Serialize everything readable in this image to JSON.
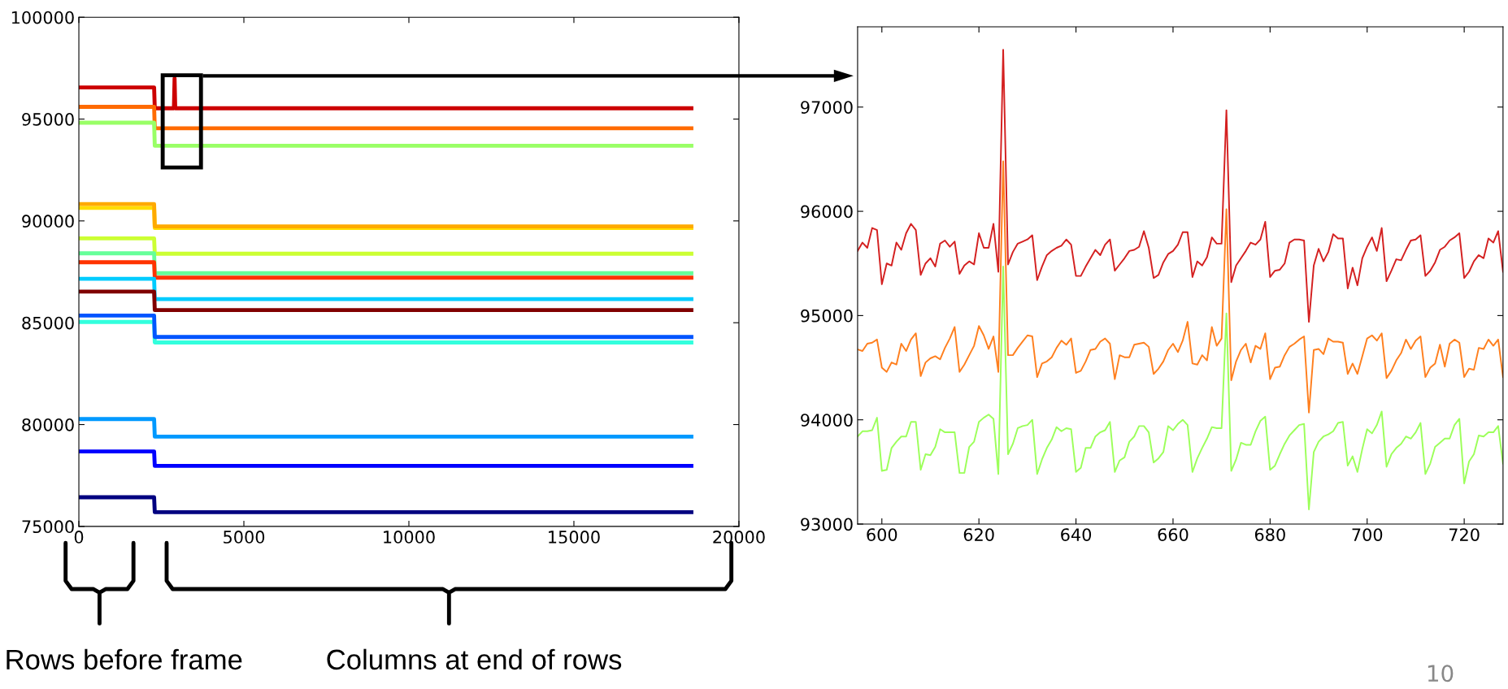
{
  "chart_data": [
    {
      "type": "line",
      "xlim": [
        0,
        20000
      ],
      "ylim": [
        75000,
        100000
      ],
      "xticks": [
        0,
        5000,
        10000,
        15000,
        20000
      ],
      "yticks": [
        75000,
        80000,
        85000,
        90000,
        95000,
        100000
      ],
      "annotations": [
        "Rows before frame",
        "Columns at end of rows"
      ],
      "series": [
        {
          "color": "#cc0000",
          "x": [
            0,
            2280,
            2300,
            2880,
            2900,
            2920,
            18560
          ],
          "values": [
            96550,
            96550,
            95530,
            95530,
            97000,
            95530,
            95530
          ]
        },
        {
          "color": "#ff6a00",
          "x": [
            0,
            2280,
            2300,
            18560
          ],
          "values": [
            95600,
            95600,
            94550,
            94550
          ]
        },
        {
          "color": "#99ff66",
          "x": [
            0,
            2280,
            2300,
            18560
          ],
          "values": [
            94820,
            94820,
            93690,
            93690
          ]
        },
        {
          "color": "#ffdd00",
          "x": [
            0,
            2280,
            2300,
            18560
          ],
          "values": [
            90640,
            90640,
            89650,
            89650
          ]
        },
        {
          "color": "#ffaa00",
          "x": [
            0,
            2280,
            2300,
            18560
          ],
          "values": [
            90830,
            90830,
            89730,
            89730
          ]
        },
        {
          "color": "#ccff33",
          "x": [
            0,
            2280,
            2300,
            18560
          ],
          "values": [
            89140,
            89140,
            88390,
            88390
          ]
        },
        {
          "color": "#66ff99",
          "x": [
            0,
            2280,
            2300,
            18560
          ],
          "values": [
            88410,
            88410,
            87430,
            87430
          ]
        },
        {
          "color": "#ff3300",
          "x": [
            0,
            2280,
            2300,
            18560
          ],
          "values": [
            87970,
            87970,
            87210,
            87210
          ]
        },
        {
          "color": "#00ccff",
          "x": [
            0,
            2280,
            2300,
            18560
          ],
          "values": [
            87160,
            87160,
            86160,
            86160
          ]
        },
        {
          "color": "#800000",
          "x": [
            0,
            2280,
            2300,
            18560
          ],
          "values": [
            86530,
            86530,
            85620,
            85620
          ]
        },
        {
          "color": "#33ffdd",
          "x": [
            0,
            2280,
            2300,
            18560
          ],
          "values": [
            85040,
            85040,
            84030,
            84030
          ]
        },
        {
          "color": "#0055ff",
          "x": [
            0,
            2280,
            2300,
            18560
          ],
          "values": [
            85350,
            85350,
            84300,
            84300
          ]
        },
        {
          "color": "#0099ff",
          "x": [
            0,
            2280,
            2300,
            18560
          ],
          "values": [
            80270,
            80270,
            79410,
            79410
          ]
        },
        {
          "color": "#0000ff",
          "x": [
            0,
            2280,
            2300,
            18560
          ],
          "values": [
            78680,
            78680,
            77970,
            77970
          ]
        },
        {
          "color": "#000080",
          "x": [
            0,
            2280,
            2300,
            18560
          ],
          "values": [
            76430,
            76430,
            75700,
            75700
          ]
        }
      ]
    },
    {
      "type": "line",
      "xlim": [
        595,
        728
      ],
      "ylim": [
        93000,
        97770
      ],
      "xticks": [
        600,
        620,
        640,
        660,
        680,
        700,
        720
      ],
      "yticks": [
        93000,
        94000,
        95000,
        96000,
        97000
      ],
      "annotations": [
        "10"
      ],
      "x": [
        595,
        596,
        597,
        598,
        599,
        600,
        601,
        602,
        603,
        604,
        605,
        606,
        607,
        608,
        609,
        610,
        611,
        612,
        613,
        614,
        615,
        616,
        617,
        618,
        619,
        620,
        621,
        622,
        623,
        624,
        625,
        626,
        627,
        628,
        629,
        630,
        631,
        632,
        633,
        634,
        635,
        636,
        637,
        638,
        639,
        640,
        641,
        642,
        643,
        644,
        645,
        646,
        647,
        648,
        649,
        650,
        651,
        652,
        653,
        654,
        655,
        656,
        657,
        658,
        659,
        660,
        661,
        662,
        663,
        664,
        665,
        666,
        667,
        668,
        669,
        670,
        671,
        672,
        673,
        674,
        675,
        676,
        677,
        678,
        679,
        680,
        681,
        682,
        683,
        684,
        685,
        686,
        687,
        688,
        689,
        690,
        691,
        692,
        693,
        694,
        695,
        696,
        697,
        698,
        699,
        700,
        701,
        702,
        703,
        704,
        705,
        706,
        707,
        708,
        709,
        710,
        711,
        712,
        713,
        714,
        715,
        716,
        717,
        718,
        719,
        720,
        721,
        722,
        723,
        724,
        725,
        726,
        727,
        728
      ],
      "series": [
        {
          "color": "#d42020",
          "values": [
            95620,
            95700,
            95650,
            95840,
            95820,
            95300,
            95500,
            95480,
            95700,
            95630,
            95790,
            95880,
            95820,
            95390,
            95500,
            95550,
            95470,
            95690,
            95720,
            95660,
            95710,
            95400,
            95480,
            95520,
            95490,
            95790,
            95650,
            95650,
            95880,
            95420,
            97550,
            95490,
            95610,
            95690,
            95710,
            95730,
            95770,
            95340,
            95470,
            95580,
            95620,
            95650,
            95670,
            95730,
            95680,
            95380,
            95380,
            95470,
            95550,
            95630,
            95580,
            95680,
            95730,
            95430,
            95490,
            95550,
            95620,
            95630,
            95660,
            95810,
            95650,
            95360,
            95390,
            95510,
            95590,
            95620,
            95680,
            95800,
            95800,
            95370,
            95520,
            95480,
            95560,
            95750,
            95690,
            95690,
            96970,
            95320,
            95480,
            95550,
            95620,
            95700,
            95680,
            95730,
            95900,
            95370,
            95430,
            95440,
            95500,
            95700,
            95730,
            95730,
            95720,
            94940,
            95480,
            95640,
            95520,
            95610,
            95780,
            95740,
            95740,
            95260,
            95460,
            95290,
            95550,
            95660,
            95750,
            95620,
            95840,
            95330,
            95430,
            95540,
            95530,
            95630,
            95720,
            95730,
            95770,
            95380,
            95430,
            95510,
            95630,
            95660,
            95720,
            95750,
            95790,
            95360,
            95420,
            95520,
            95580,
            95550,
            95740,
            95700,
            95810,
            95420
          ]
        },
        {
          "color": "#ff7f1e",
          "values": [
            94675,
            94660,
            94730,
            94740,
            94770,
            94500,
            94460,
            94550,
            94530,
            94730,
            94660,
            94770,
            94830,
            94420,
            94550,
            94590,
            94610,
            94580,
            94690,
            94780,
            94890,
            94460,
            94530,
            94620,
            94710,
            94900,
            94810,
            94680,
            94800,
            94460,
            96480,
            94620,
            94620,
            94690,
            94750,
            94810,
            94800,
            94410,
            94540,
            94560,
            94600,
            94690,
            94760,
            94720,
            94780,
            94450,
            94470,
            94560,
            94670,
            94680,
            94750,
            94780,
            94730,
            94390,
            94620,
            94600,
            94600,
            94720,
            94730,
            94740,
            94700,
            94440,
            94490,
            94560,
            94670,
            94730,
            94650,
            94760,
            94940,
            94540,
            94530,
            94620,
            94570,
            94890,
            94710,
            94780,
            96020,
            94380,
            94560,
            94670,
            94730,
            94550,
            94710,
            94680,
            94830,
            94390,
            94500,
            94510,
            94620,
            94700,
            94730,
            94770,
            94800,
            94070,
            94670,
            94680,
            94630,
            94780,
            94750,
            94750,
            94740,
            94440,
            94540,
            94440,
            94610,
            94780,
            94810,
            94760,
            94830,
            94400,
            94470,
            94570,
            94640,
            94770,
            94680,
            94760,
            94800,
            94410,
            94500,
            94540,
            94720,
            94510,
            94730,
            94770,
            94740,
            94410,
            94490,
            94480,
            94690,
            94680,
            94770,
            94710,
            94770,
            94410
          ]
        },
        {
          "color": "#9cff5a",
          "values": [
            93840,
            93890,
            93890,
            93900,
            94020,
            93510,
            93520,
            93730,
            93790,
            93840,
            93840,
            93980,
            93980,
            93520,
            93670,
            93660,
            93740,
            93910,
            93880,
            93880,
            93880,
            93490,
            93490,
            93740,
            93790,
            93980,
            94020,
            94050,
            94010,
            93480,
            95470,
            93670,
            93770,
            93920,
            93940,
            93950,
            94000,
            93480,
            93620,
            93730,
            93810,
            93930,
            93890,
            93920,
            93910,
            93500,
            93540,
            93730,
            93730,
            93840,
            93880,
            93900,
            93980,
            93500,
            93610,
            93640,
            93790,
            93840,
            93940,
            93940,
            93880,
            93590,
            93630,
            93690,
            93940,
            93900,
            93960,
            94000,
            93950,
            93500,
            93630,
            93730,
            93820,
            93930,
            93920,
            93920,
            95020,
            93510,
            93620,
            93780,
            93760,
            93760,
            93890,
            93990,
            94030,
            93520,
            93560,
            93670,
            93770,
            93850,
            93900,
            93950,
            93960,
            93140,
            93690,
            93790,
            93840,
            93860,
            93890,
            93970,
            93980,
            93560,
            93650,
            93500,
            93720,
            93910,
            93870,
            93950,
            94080,
            93550,
            93670,
            93730,
            93770,
            93840,
            93820,
            93880,
            93970,
            93480,
            93580,
            93740,
            93780,
            93820,
            93820,
            93950,
            94010,
            93390,
            93600,
            93670,
            93850,
            93840,
            93880,
            93880,
            93940,
            93580
          ]
        }
      ]
    }
  ]
}
